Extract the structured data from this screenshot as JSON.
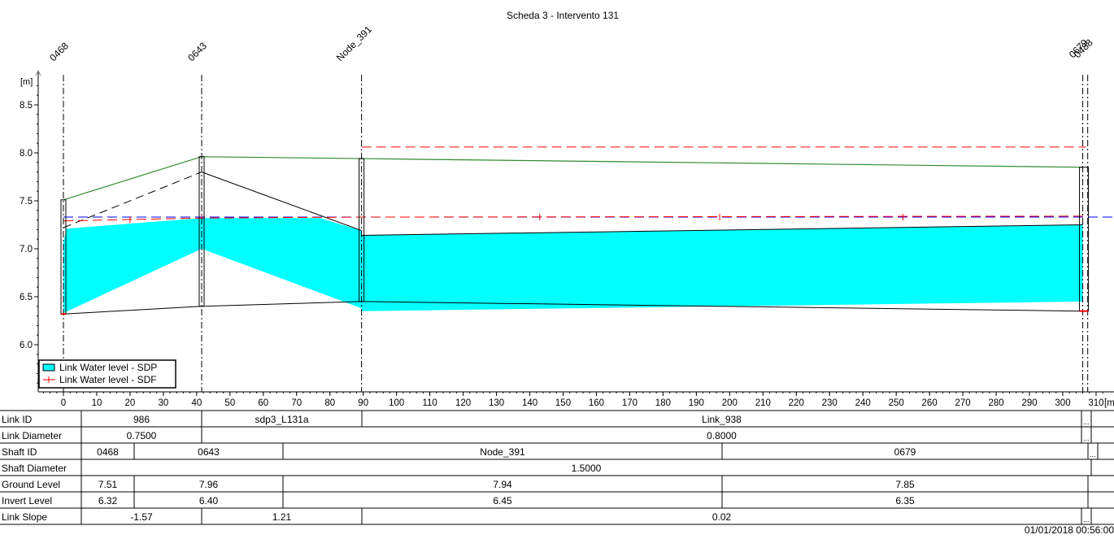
{
  "chart_data": {
    "type": "area",
    "title": "Scheda 3 - Intervento 131",
    "ylabel": "[m]",
    "xlabel": "[m]",
    "ylim": [
      5.55,
      8.75
    ],
    "xlim": [
      -7,
      310
    ],
    "y_ticks": [
      "6.0",
      "6.5",
      "7.0",
      "7.5",
      "8.0",
      "8.5"
    ],
    "x_ticks": [
      "0",
      "10",
      "20",
      "30",
      "40",
      "50",
      "60",
      "70",
      "80",
      "90",
      "100",
      "110",
      "120",
      "130",
      "140",
      "150",
      "160",
      "170",
      "180",
      "190",
      "200",
      "210",
      "220",
      "230",
      "240",
      "250",
      "260",
      "270",
      "280",
      "290",
      "300",
      "310"
    ],
    "nodes": [
      {
        "name": "0468",
        "x": 0,
        "ground": 7.51,
        "invert": 6.32
      },
      {
        "name": "0643",
        "x": 41.5,
        "ground": 7.96,
        "invert": 6.4
      },
      {
        "name": "Node_391",
        "x": 89.5,
        "ground": 7.94,
        "invert": 6.45
      },
      {
        "name": "0679",
        "x": 306,
        "ground": 7.85,
        "invert": 6.35
      },
      {
        "name": "0488",
        "x": 307,
        "ground": 7.85,
        "invert": 6.35
      }
    ],
    "series": [
      {
        "name": "Link Water level - SDP",
        "color": "#00ffff",
        "top": [
          [
            0,
            7.07
          ],
          [
            1,
            7.21
          ],
          [
            41.5,
            7.32
          ],
          [
            77,
            7.32
          ],
          [
            89.5,
            7.19
          ],
          [
            89.5,
            7.14
          ],
          [
            306,
            7.25
          ]
        ],
        "bottom": [
          [
            0,
            6.33
          ],
          [
            41.5,
            7.0
          ],
          [
            89.5,
            6.38
          ],
          [
            89.5,
            6.35
          ],
          [
            306,
            6.45
          ]
        ]
      },
      {
        "name": "Link Water level - SDF",
        "color": "#ff0000",
        "points": [
          [
            0,
            7.29
          ],
          [
            41.5,
            7.32
          ],
          [
            89.5,
            7.33
          ],
          [
            306,
            7.34
          ]
        ]
      }
    ],
    "ground_line": [
      [
        0,
        7.51
      ],
      [
        41.5,
        7.96
      ],
      [
        89.5,
        7.94
      ],
      [
        306,
        7.85
      ]
    ],
    "pipe_crown_upstream": [
      [
        0,
        7.22
      ],
      [
        41.5,
        7.8
      ],
      [
        89.5,
        7.19
      ]
    ],
    "blue_reference_level": 7.33,
    "red_reference_level": 8.06,
    "colors": {
      "ground": "#2e8b2e",
      "sdp_fill": "#00ffff",
      "sdf": "#ff0000",
      "ref_blue": "#0000ff"
    }
  },
  "legend": {
    "items": [
      "Link Water level - SDP",
      "Link Water level - SDF"
    ]
  },
  "table": {
    "rows": [
      {
        "label": "Link ID",
        "cells": [
          "986",
          "sdp3_L131a",
          "Link_938",
          "..."
        ]
      },
      {
        "label": "Link Diameter",
        "cells": [
          "0.7500",
          "0.8000",
          "..."
        ]
      },
      {
        "label": "Shaft ID",
        "cells": [
          "0468",
          "0643",
          "Node_391",
          "0679",
          "..."
        ]
      },
      {
        "label": "Shaft Diameter",
        "cells": [
          "1.5000"
        ]
      },
      {
        "label": "Ground Level",
        "cells": [
          "7.51",
          "7.96",
          "7.94",
          "7.85"
        ]
      },
      {
        "label": "Invert Level",
        "cells": [
          "6.32",
          "6.40",
          "6.45",
          "6.35"
        ]
      },
      {
        "label": "Link Slope",
        "cells": [
          "-1.57",
          "1.21",
          "0.02",
          "..."
        ]
      }
    ]
  },
  "timestamp": "01/01/2018 00:56:00"
}
